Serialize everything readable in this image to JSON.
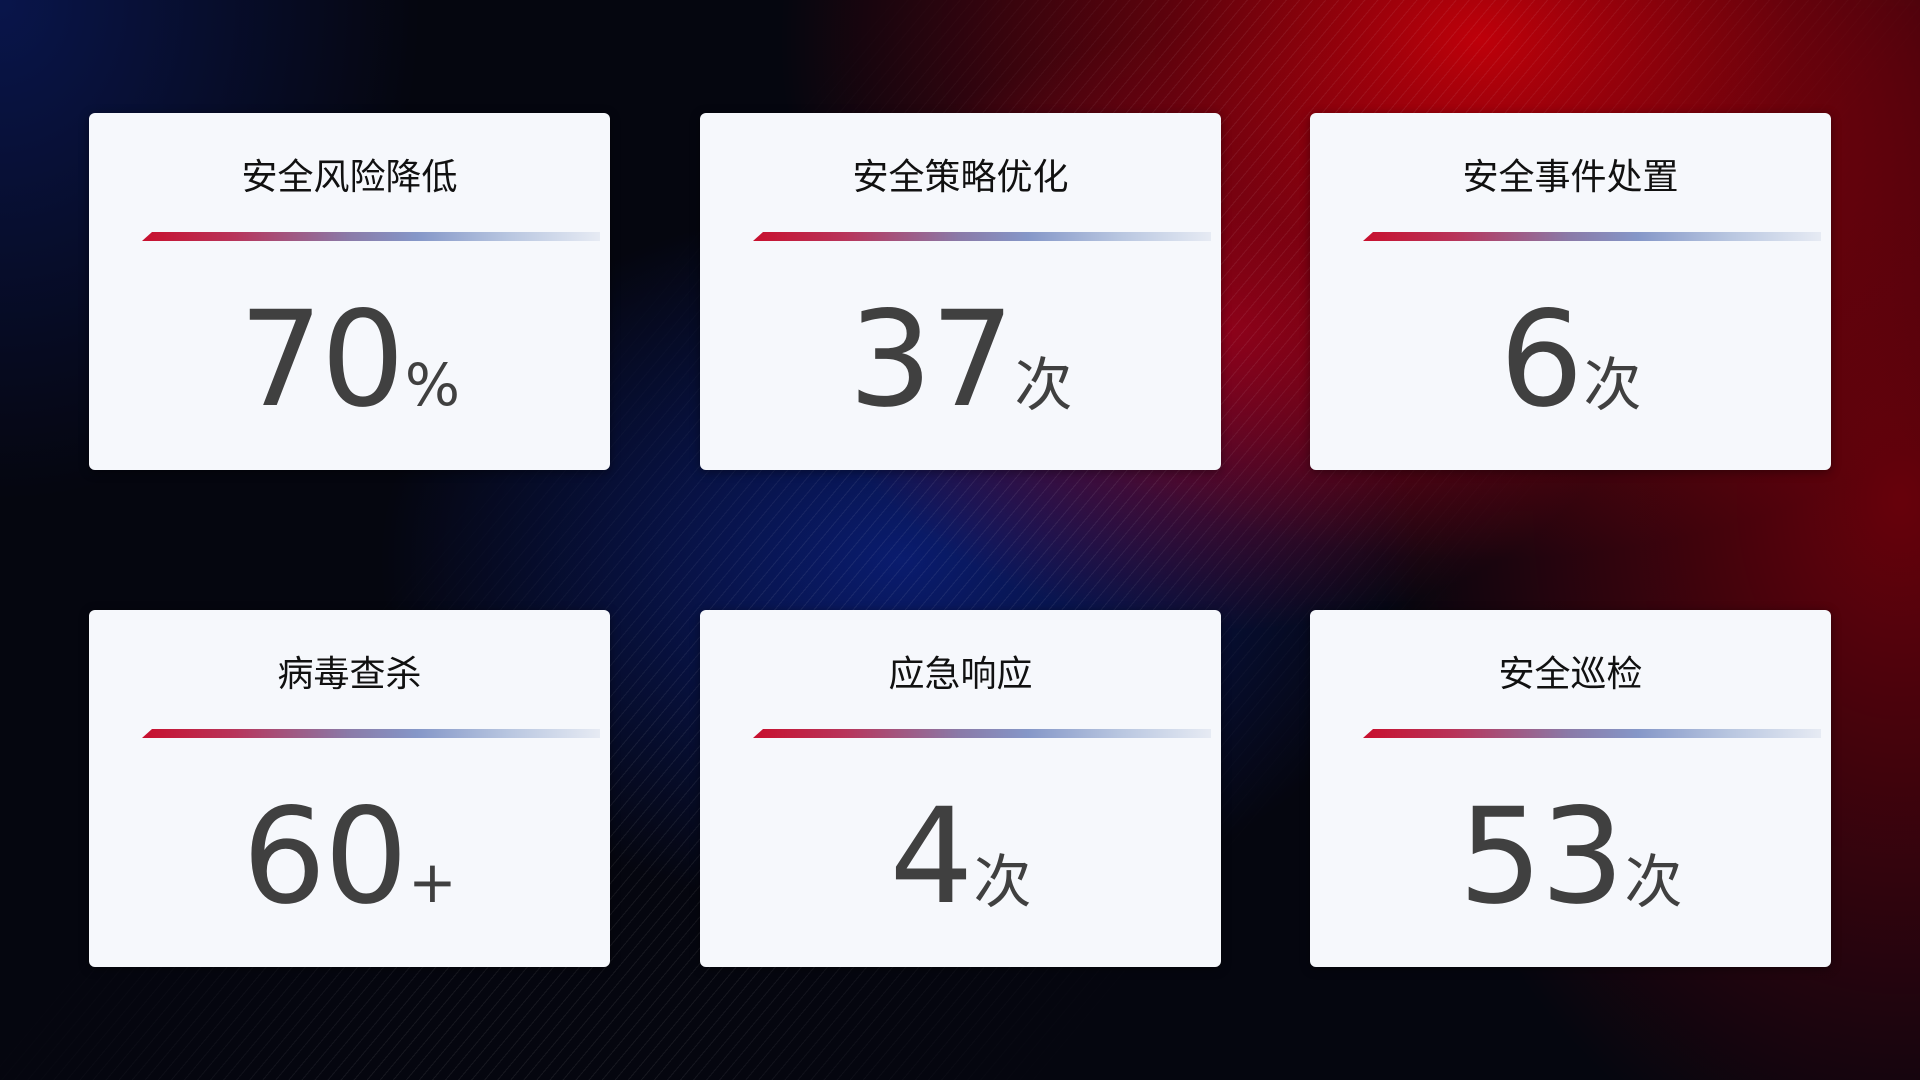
{
  "cards": [
    {
      "title": "安全风险降低",
      "value": "70",
      "unit": "%"
    },
    {
      "title": "安全策略优化",
      "value": "37",
      "unit": "次"
    },
    {
      "title": "安全事件处置",
      "value": "6",
      "unit": "次"
    },
    {
      "title": "病毒查杀",
      "value": "60",
      "unit": "+"
    },
    {
      "title": "应急响应",
      "value": "4",
      "unit": "次"
    },
    {
      "title": "安全巡检",
      "value": "53",
      "unit": "次"
    }
  ],
  "colors": {
    "accent_red": "#c8102e",
    "accent_blue": "#8597c8",
    "card_bg": "#f6f8fc",
    "value_text": "#404040"
  }
}
